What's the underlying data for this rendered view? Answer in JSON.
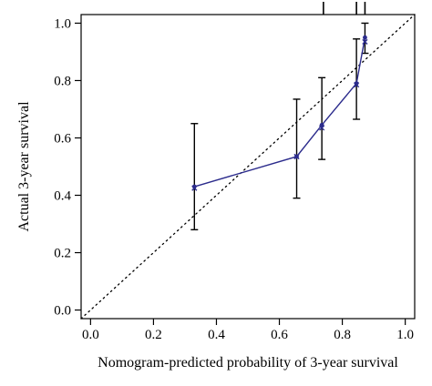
{
  "chart_data": {
    "type": "line",
    "title": "",
    "xlabel": "Nomogram-predicted probability of 3-year survival",
    "ylabel": "Actual 3-year survival",
    "xlim": [
      -0.03,
      1.03
    ],
    "ylim": [
      -0.03,
      1.03
    ],
    "x_ticks": [
      0.0,
      0.2,
      0.4,
      0.6,
      0.8,
      1.0
    ],
    "x_tick_labels": [
      "0.0",
      "0.2",
      "0.4",
      "0.6",
      "0.8",
      "1.0"
    ],
    "y_ticks": [
      0.0,
      0.2,
      0.4,
      0.6,
      0.8,
      1.0
    ],
    "y_tick_labels": [
      "0.0",
      "0.2",
      "0.4",
      "0.6",
      "0.8",
      "1.0"
    ],
    "reference_line": {
      "style": "dotted",
      "from": [
        -0.03,
        -0.03
      ],
      "to": [
        1.03,
        1.03
      ]
    },
    "grid": false,
    "series": [
      {
        "color": "#2b2b8c",
        "x": [
          0.33,
          0.655,
          0.735,
          0.845,
          0.872
        ],
        "y": [
          0.43,
          0.535,
          0.645,
          0.79,
          0.95
        ],
        "ci_lower": [
          0.28,
          0.39,
          0.525,
          0.665,
          0.895
        ],
        "ci_upper": [
          0.65,
          0.735,
          0.81,
          0.945,
          1.0
        ]
      }
    ],
    "crosses": {
      "x": [
        0.33,
        0.655,
        0.735,
        0.845,
        0.872
      ],
      "y": [
        0.425,
        0.535,
        0.635,
        0.785,
        0.935
      ]
    },
    "rug_top": [
      0.74,
      0.845,
      0.872
    ]
  }
}
